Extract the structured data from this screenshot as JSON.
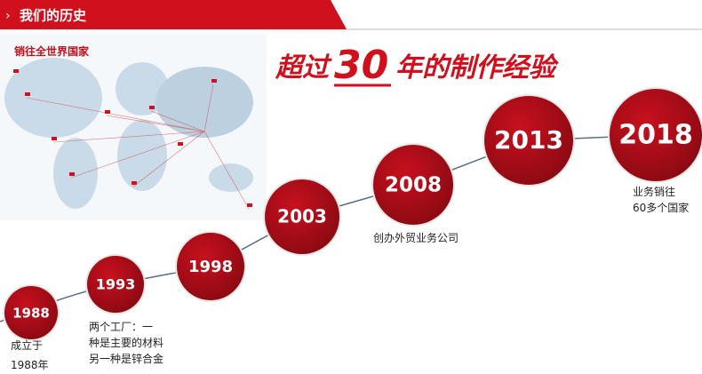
{
  "header": {
    "title": "我们的历史"
  },
  "map": {
    "label": "销往全世界国家"
  },
  "slogan": {
    "before": "超过",
    "number": "30",
    "after": "年的制作经验"
  },
  "milestones": [
    {
      "year": "1988",
      "lines": [
        "成立于",
        "1988年"
      ]
    },
    {
      "year": "1993",
      "lines": [
        "两个工厂：一",
        "种是主要的材料",
        "另一种是锌合金"
      ]
    },
    {
      "year": "1998",
      "lines": []
    },
    {
      "year": "2003",
      "lines": []
    },
    {
      "year": "2008",
      "lines": [
        "创办外贸业务公司"
      ]
    },
    {
      "year": "2013",
      "lines": []
    },
    {
      "year": "2018",
      "lines": [
        "业务销往",
        "60多个国家"
      ]
    }
  ]
}
